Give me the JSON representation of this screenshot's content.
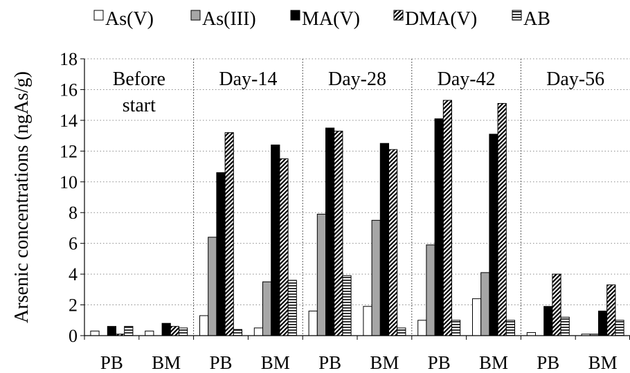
{
  "chart_data": {
    "type": "bar",
    "ylabel": "Arsenic concentrations (ngAs/g)",
    "ylim": [
      0,
      18
    ],
    "yticks": [
      0,
      2,
      4,
      6,
      8,
      10,
      12,
      14,
      16,
      18
    ],
    "grid": true,
    "legend_position": "top",
    "periods": [
      {
        "label_lines": [
          "Before",
          "start"
        ]
      },
      {
        "label_lines": [
          "Day-14"
        ]
      },
      {
        "label_lines": [
          "Day-28"
        ]
      },
      {
        "label_lines": [
          "Day-42"
        ]
      },
      {
        "label_lines": [
          "Day-56"
        ]
      }
    ],
    "categories": [
      "PB",
      "BM",
      "PB",
      "BM",
      "PB",
      "BM",
      "PB",
      "BM",
      "PB",
      "BM"
    ],
    "series": [
      {
        "name": "As(V)",
        "pattern": "white",
        "values": [
          0.3,
          0.3,
          1.3,
          0.5,
          1.6,
          1.9,
          1.0,
          2.4,
          0.2,
          0.1
        ]
      },
      {
        "name": "As(III)",
        "pattern": "gray",
        "values": [
          0.0,
          0.0,
          6.4,
          3.5,
          7.9,
          7.5,
          5.9,
          4.1,
          0.0,
          0.1
        ]
      },
      {
        "name": "MA(V)",
        "pattern": "black",
        "values": [
          0.6,
          0.8,
          10.6,
          12.4,
          13.5,
          12.5,
          14.1,
          13.1,
          1.9,
          1.6
        ]
      },
      {
        "name": "DMA(V)",
        "pattern": "diagonal",
        "values": [
          0.1,
          0.6,
          13.2,
          11.5,
          13.3,
          12.1,
          15.3,
          15.1,
          4.0,
          3.3
        ]
      },
      {
        "name": "AB",
        "pattern": "horizontal",
        "values": [
          0.6,
          0.5,
          0.4,
          3.6,
          3.9,
          0.5,
          1.0,
          1.0,
          1.2,
          1.0
        ]
      }
    ]
  }
}
